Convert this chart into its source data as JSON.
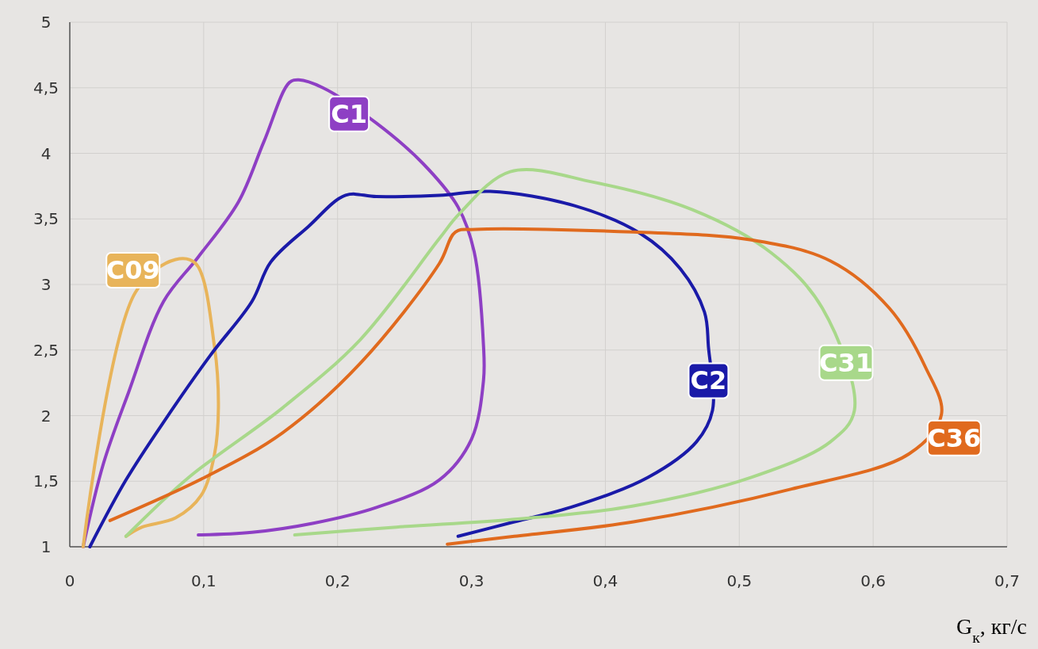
{
  "chart_data": {
    "type": "line",
    "xlabel": "G$_{к}$, кг/с",
    "grid": true,
    "xlim": [
      0,
      0.7
    ],
    "ylim": [
      1,
      5
    ],
    "xticks": [
      0,
      {
        "value": 0.1,
        "label": "0,1"
      },
      {
        "value": 0.2,
        "label": "0,2"
      },
      {
        "value": 0.3,
        "label": "0,3"
      },
      {
        "value": 0.4,
        "label": "0,4"
      },
      {
        "value": 0.5,
        "label": "0,5"
      },
      {
        "value": 0.6,
        "label": "0,6"
      },
      {
        "value": 0.7,
        "label": "0,7"
      }
    ],
    "yticks": [
      1,
      {
        "value": 1.5,
        "label": "1,5"
      },
      2,
      {
        "value": 2.5,
        "label": "2,5"
      },
      3,
      {
        "value": 3.5,
        "label": "3,5"
      },
      4,
      {
        "value": 4.5,
        "label": "4,5"
      },
      5
    ],
    "series": [
      {
        "name": "C1",
        "color": "#8e3fc4",
        "x": [
          0.01,
          0.025,
          0.044,
          0.07,
          0.096,
          0.126,
          0.145,
          0.164,
          0.171,
          0.189,
          0.229,
          0.264,
          0.29,
          0.302,
          0.309,
          0.309,
          0.3,
          0.276,
          0.229,
          0.182,
          0.136,
          0.096
        ],
        "values": [
          1.0,
          1.63,
          2.18,
          2.87,
          3.21,
          3.63,
          4.09,
          4.54,
          4.56,
          4.5,
          4.23,
          3.92,
          3.59,
          3.25,
          2.53,
          2.27,
          1.82,
          1.51,
          1.3,
          1.18,
          1.11,
          1.09
        ]
      },
      {
        "name": "C09",
        "color": "#e8b45a",
        "x": [
          0.01,
          0.049,
          0.079,
          0.094,
          0.108,
          0.111,
          0.108,
          0.098,
          0.079,
          0.054,
          0.042
        ],
        "values": [
          1.0,
          2.94,
          3.19,
          3.16,
          2.53,
          2.06,
          1.7,
          1.39,
          1.22,
          1.15,
          1.08
        ]
      },
      {
        "name": "C2",
        "color": "#1a1aa8",
        "x": [
          0.015,
          0.042,
          0.072,
          0.105,
          0.136,
          0.15,
          0.178,
          0.206,
          0.229,
          0.276,
          0.314,
          0.377,
          0.426,
          0.456,
          0.474,
          0.477,
          0.48,
          0.468,
          0.432,
          0.377,
          0.332,
          0.29
        ],
        "values": [
          1.0,
          1.51,
          1.98,
          2.46,
          2.87,
          3.17,
          3.44,
          3.68,
          3.67,
          3.68,
          3.71,
          3.6,
          3.39,
          3.12,
          2.79,
          2.52,
          2.04,
          1.8,
          1.53,
          1.31,
          1.19,
          1.08
        ]
      },
      {
        "name": "C31",
        "color": "#a8d88a",
        "x": [
          0.042,
          0.089,
          0.159,
          0.217,
          0.276,
          0.291,
          0.329,
          0.391,
          0.465,
          0.524,
          0.562,
          0.586,
          0.568,
          0.509,
          0.42,
          0.332,
          0.244,
          0.168
        ],
        "values": [
          1.08,
          1.53,
          2.06,
          2.58,
          3.35,
          3.54,
          3.86,
          3.78,
          3.57,
          3.24,
          2.82,
          2.04,
          1.8,
          1.53,
          1.31,
          1.21,
          1.15,
          1.09
        ]
      },
      {
        "name": "C36",
        "color": "#e06a1e",
        "x": [
          0.03,
          0.101,
          0.159,
          0.217,
          0.276,
          0.288,
          0.303,
          0.421,
          0.509,
          0.568,
          0.612,
          0.639,
          0.651,
          0.627,
          0.539,
          0.421,
          0.332,
          0.282
        ],
        "values": [
          1.2,
          1.53,
          1.87,
          2.4,
          3.16,
          3.4,
          3.42,
          3.4,
          3.34,
          3.18,
          2.82,
          2.37,
          2.01,
          1.71,
          1.44,
          1.19,
          1.08,
          1.02
        ]
      }
    ]
  }
}
